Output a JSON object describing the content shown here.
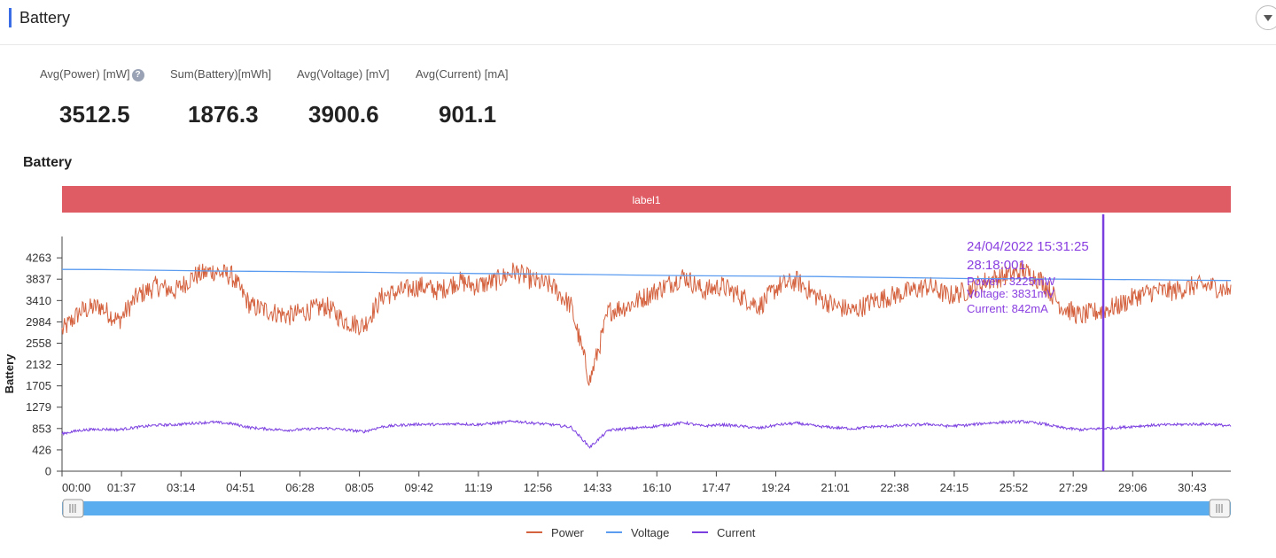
{
  "header": {
    "title": "Battery"
  },
  "summary": {
    "metrics": [
      {
        "label": "Avg(Power) [mW]",
        "value": "3512.5",
        "help": "?"
      },
      {
        "label": "Sum(Battery)[mWh]",
        "value": "1876.3"
      },
      {
        "label": "Avg(Voltage) [mV]",
        "value": "3900.6"
      },
      {
        "label": "Avg(Current) [mA]",
        "value": "901.1"
      }
    ]
  },
  "section": {
    "title": "Battery"
  },
  "colors": {
    "power": "#d4623f",
    "voltage": "#5b9cf0",
    "current": "#7b3fe0",
    "band": "#e05c64",
    "slider": "#5aaef0",
    "tooltip": "#8a3fe0",
    "accent": "#3b6ee6"
  },
  "chart_data": {
    "type": "line",
    "band_label": "label1",
    "ylabel": "Battery",
    "y_ticks": [
      "0",
      "426",
      "853",
      "1279",
      "1705",
      "2132",
      "2558",
      "2984",
      "3410",
      "3837",
      "4263"
    ],
    "ylim": [
      0,
      4690
    ],
    "x_ticks": [
      "00:00",
      "01:37",
      "03:14",
      "04:51",
      "06:28",
      "08:05",
      "09:42",
      "11:19",
      "12:56",
      "14:33",
      "16:10",
      "17:47",
      "19:24",
      "21:01",
      "22:38",
      "24:15",
      "25:52",
      "27:29",
      "29:06",
      "30:43"
    ],
    "x_tick_seconds": [
      0,
      97,
      194,
      291,
      388,
      485,
      582,
      679,
      776,
      873,
      970,
      1067,
      1164,
      1261,
      1358,
      1455,
      1552,
      1649,
      1746,
      1843
    ],
    "x_range_seconds": [
      0,
      1906
    ],
    "grid": false,
    "legend_position": "bottom-center",
    "series": [
      {
        "name": "Power",
        "color": "#d4623f",
        "values": [
          2800,
          3200,
          3300,
          3000,
          3500,
          3700,
          3600,
          3900,
          4000,
          3900,
          3300,
          3200,
          3100,
          3200,
          3300,
          3000,
          2900,
          3500,
          3600,
          3700,
          3600,
          3800,
          3700,
          3800,
          4000,
          3800,
          3700,
          3300,
          1800,
          3200,
          3300,
          3500,
          3700,
          3900,
          3600,
          3700,
          3500,
          3300,
          3700,
          3800,
          3500,
          3300,
          3200,
          3400,
          3500,
          3600,
          3700,
          3500,
          3600,
          3800,
          3900,
          4000,
          3800,
          3300,
          3100,
          3200,
          3300,
          3500,
          3600,
          3600,
          3700,
          3700,
          3600
        ]
      },
      {
        "name": "Voltage",
        "color": "#5b9cf0",
        "values": [
          4032,
          4030,
          4020,
          4010,
          4000,
          3995,
          3990,
          3980,
          3975,
          3965,
          3960,
          3950,
          3945,
          3940,
          3930,
          3920,
          3912,
          3905,
          3900,
          3895,
          3890,
          3880,
          3870,
          3860,
          3850,
          3845,
          3840,
          3835,
          3830,
          3825,
          3815,
          3810
        ]
      },
      {
        "name": "Current",
        "color": "#7b3fe0",
        "values": [
          750,
          820,
          840,
          830,
          880,
          920,
          930,
          960,
          980,
          950,
          870,
          840,
          820,
          840,
          860,
          830,
          790,
          890,
          920,
          940,
          930,
          950,
          930,
          960,
          1000,
          960,
          930,
          880,
          480,
          820,
          850,
          880,
          920,
          970,
          900,
          930,
          900,
          860,
          930,
          960,
          900,
          870,
          850,
          890,
          900,
          920,
          940,
          900,
          920,
          960,
          980,
          990,
          950,
          870,
          830,
          850,
          870,
          900,
          920,
          930,
          940,
          940,
          900
        ]
      }
    ],
    "tooltip": {
      "date": "24/04/2022 15:31:25",
      "elapsed": "28:18:001",
      "lines": [
        "Power  : 3225mW",
        "Voltage: 3831mV",
        "Current: 842mA"
      ],
      "x_seconds": 1698
    },
    "legend": [
      "Power",
      "Voltage",
      "Current"
    ]
  }
}
